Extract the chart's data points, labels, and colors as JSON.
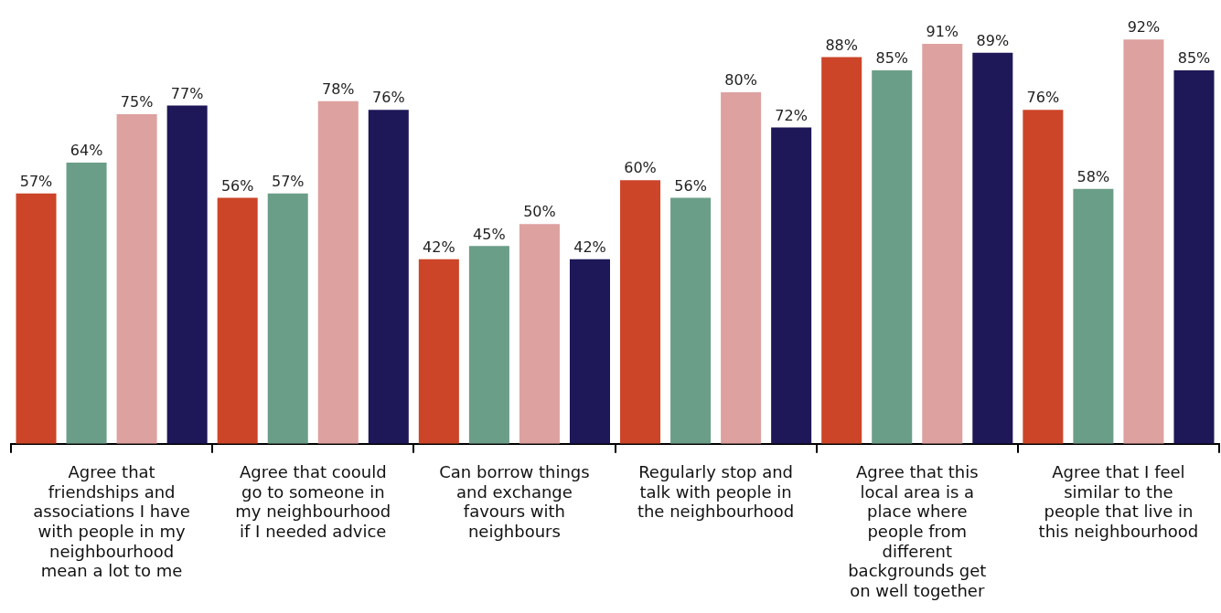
{
  "chart_data": {
    "type": "bar",
    "categories": [
      "Agree that friendships and associations I have with people in my neighbourhood mean a lot to me",
      "Agree that coould go to someone in my neighbourhood if I needed advice",
      "Can borrow things and exchange favours with neighbours",
      "Regularly stop and talk with people in the neighbourhood",
      "Agree that this local area is a place where people from different backgrounds get on well together",
      "Agree that I feel similar to the people that live in this neighbourhood"
    ],
    "series": [
      {
        "color": "#cc4528",
        "values": [
          57,
          56,
          42,
          60,
          88,
          76
        ],
        "value_labels": [
          "57%",
          "56%",
          "42%",
          "60%",
          "88%",
          "76%"
        ]
      },
      {
        "color": "#6b9e88",
        "values": [
          64,
          57,
          45,
          56,
          85,
          58
        ],
        "value_labels": [
          "64%",
          "57%",
          "45%",
          "56%",
          "85%",
          "58%"
        ]
      },
      {
        "color": "#dda19f",
        "values": [
          75,
          78,
          50,
          80,
          91,
          92
        ],
        "value_labels": [
          "75%",
          "78%",
          "50%",
          "80%",
          "91%",
          "92%"
        ]
      },
      {
        "color": "#1e1858",
        "values": [
          77,
          76,
          42,
          72,
          89,
          85
        ],
        "value_labels": [
          "77%",
          "76%",
          "42%",
          "72%",
          "89%",
          "85%"
        ]
      }
    ],
    "grid": false,
    "legend": false,
    "tick_labels": "x"
  }
}
